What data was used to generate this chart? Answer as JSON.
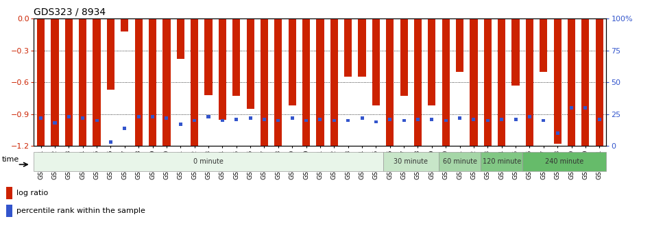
{
  "title": "GDS323 / 8934",
  "samples": [
    "GSM5811",
    "GSM5812",
    "GSM5813",
    "GSM5814",
    "GSM5815",
    "GSM5816",
    "GSM5817",
    "GSM5818",
    "GSM5819",
    "GSM5820",
    "GSM5821",
    "GSM5822",
    "GSM5823",
    "GSM5824",
    "GSM5825",
    "GSM5826",
    "GSM5827",
    "GSM5828",
    "GSM5829",
    "GSM5830",
    "GSM5831",
    "GSM5832",
    "GSM5833",
    "GSM5834",
    "GSM5835",
    "GSM5836",
    "GSM5837",
    "GSM5838",
    "GSM5839",
    "GSM5840",
    "GSM5841",
    "GSM5842",
    "GSM5843",
    "GSM5844",
    "GSM5845",
    "GSM5846",
    "GSM5847",
    "GSM5848",
    "GSM5849",
    "GSM5850",
    "GSM5851"
  ],
  "log_ratio": [
    -1.2,
    -1.2,
    -1.2,
    -1.2,
    -1.2,
    -0.67,
    -0.12,
    -1.2,
    -1.2,
    -1.2,
    -0.38,
    -1.2,
    -0.72,
    -0.95,
    -0.73,
    -0.85,
    -1.2,
    -1.2,
    -0.82,
    -1.2,
    -1.2,
    -1.2,
    -0.55,
    -0.55,
    -0.82,
    -1.2,
    -0.73,
    -1.2,
    -0.82,
    -1.2,
    -0.5,
    -1.2,
    -1.2,
    -1.2,
    -0.63,
    -1.2,
    -0.5,
    -1.18,
    -1.2,
    -1.2,
    -1.2
  ],
  "percentile_rank_pct": [
    22,
    18,
    23,
    22,
    20,
    3,
    14,
    23,
    23,
    22,
    17,
    20,
    23,
    20,
    21,
    22,
    21,
    20,
    22,
    20,
    21,
    20,
    20,
    22,
    19,
    21,
    20,
    21,
    21,
    20,
    22,
    21,
    20,
    21,
    21,
    23,
    20,
    10,
    30,
    30,
    21
  ],
  "time_groups": [
    {
      "label": "0 minute",
      "start": 0,
      "end": 25,
      "color": "#e8f5e9"
    },
    {
      "label": "30 minute",
      "start": 25,
      "end": 29,
      "color": "#c8e6c9"
    },
    {
      "label": "60 minute",
      "start": 29,
      "end": 32,
      "color": "#a5d6a7"
    },
    {
      "label": "120 minute",
      "start": 32,
      "end": 35,
      "color": "#81c784"
    },
    {
      "label": "240 minute",
      "start": 35,
      "end": 41,
      "color": "#66bb6a"
    }
  ],
  "bar_color": "#cc2200",
  "blue_color": "#3355cc",
  "ylim_min": -1.2,
  "ylim_max": 0.0,
  "y2lim_min": 0,
  "y2lim_max": 100,
  "yticks": [
    0,
    -0.3,
    -0.6,
    -0.9,
    -1.2
  ],
  "y2ticks": [
    100,
    75,
    50,
    25,
    0
  ],
  "y2tick_labels": [
    "100%",
    "75",
    "50",
    "25",
    "0"
  ],
  "background_color": "#ffffff",
  "title_fontsize": 10,
  "tick_fontsize": 6.5,
  "label_color_left": "#cc2200",
  "label_color_right": "#3355cc"
}
